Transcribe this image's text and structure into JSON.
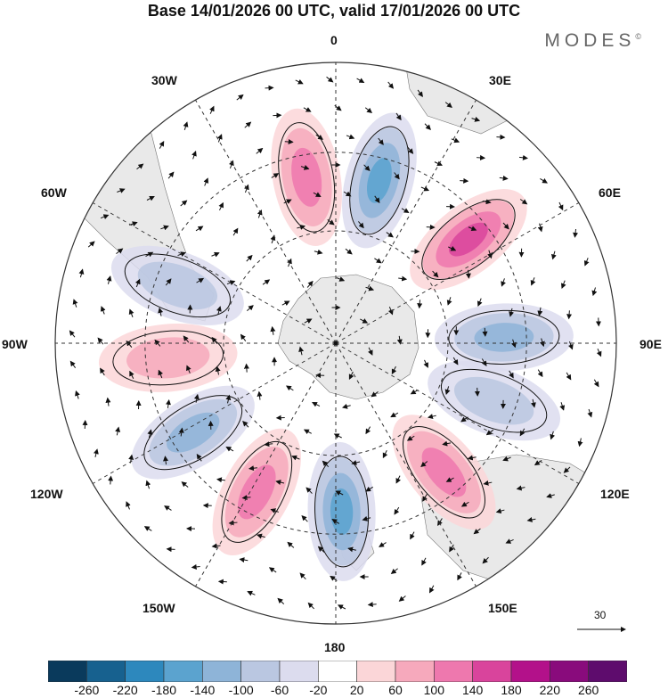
{
  "header": {
    "title": "Base 14/01/2026 00 UTC, valid 17/01/2026 00 UTC",
    "brand": "MODES",
    "brand_mark": "©"
  },
  "map": {
    "projection": "south-polar-stereographic",
    "lon_labels": {
      "n0": "0",
      "e30": "30E",
      "e60": "60E",
      "e90": "90E",
      "e120": "120E",
      "e150": "150E",
      "s180": "180",
      "w150": "150W",
      "w120": "120W",
      "w90": "90W",
      "w60": "60W",
      "w30": "30W"
    },
    "reference_vector": "30",
    "anomaly_centers": [
      {
        "lon": 350,
        "sign": "positive",
        "strength": 0.8
      },
      {
        "lon": 15,
        "sign": "negative",
        "strength": 0.8
      },
      {
        "lon": 52,
        "sign": "positive",
        "strength": 0.9
      },
      {
        "lon": 88,
        "sign": "negative",
        "strength": 0.5
      },
      {
        "lon": 110,
        "sign": "negative",
        "strength": 0.45
      },
      {
        "lon": 140,
        "sign": "positive",
        "strength": 0.75
      },
      {
        "lon": 178,
        "sign": "negative",
        "strength": 0.7
      },
      {
        "lon": 208,
        "sign": "positive",
        "strength": 0.85
      },
      {
        "lon": 238,
        "sign": "negative",
        "strength": 0.55
      },
      {
        "lon": 265,
        "sign": "positive",
        "strength": 0.5
      },
      {
        "lon": 290,
        "sign": "negative",
        "strength": 0.4
      }
    ]
  },
  "colorbar": {
    "ticks": [
      "-260",
      "-220",
      "-180",
      "-140",
      "-100",
      "-60",
      "-20",
      "20",
      "60",
      "100",
      "140",
      "180",
      "220",
      "260"
    ],
    "colors": [
      "#0a3a5c",
      "#17618f",
      "#2d88bd",
      "#5ba3cf",
      "#8eb4d8",
      "#bac7e1",
      "#dcdcee",
      "#ffffff",
      "#fbd6d8",
      "#f6a9bc",
      "#ee78ae",
      "#d9449c",
      "#b3118a",
      "#890b7c",
      "#5e0c6d"
    ]
  }
}
